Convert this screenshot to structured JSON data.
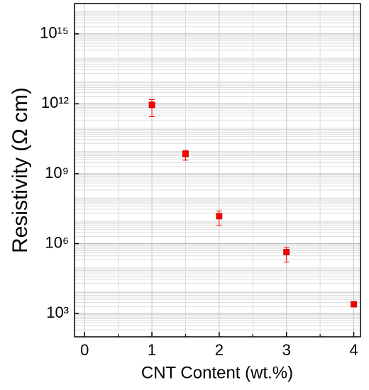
{
  "chart_data": {
    "type": "scatter",
    "x_label": "CNT Content (wt.%)",
    "y_label": "Resistivity (Ω cm)",
    "x": [
      1,
      1.5,
      2,
      3,
      4
    ],
    "series": [
      {
        "color": "#ff0000",
        "values": [
          900000000000,
          7000000000,
          15000000,
          430000,
          2500
        ],
        "error_minus": [
          620000000000,
          3200000000,
          9000000,
          270000,
          300
        ],
        "error_plus": [
          600000000000,
          3000000000,
          10000000,
          270000,
          300
        ]
      }
    ],
    "xlim": [
      -0.15,
      4.1
    ],
    "xticks": [
      0,
      1,
      2,
      3,
      4
    ],
    "ylim": [
      100,
      20000000000000000
    ],
    "y_scale": "log",
    "yticks": [
      {
        "value": 1000,
        "label": "10³"
      },
      {
        "value": 1000000,
        "label": "10⁶"
      },
      {
        "value": 1000000000,
        "label": "10⁹"
      },
      {
        "value": 1000000000000,
        "label": "10¹²"
      },
      {
        "value": 1000000000000000,
        "label": "10¹⁵"
      }
    ],
    "grid": true
  }
}
